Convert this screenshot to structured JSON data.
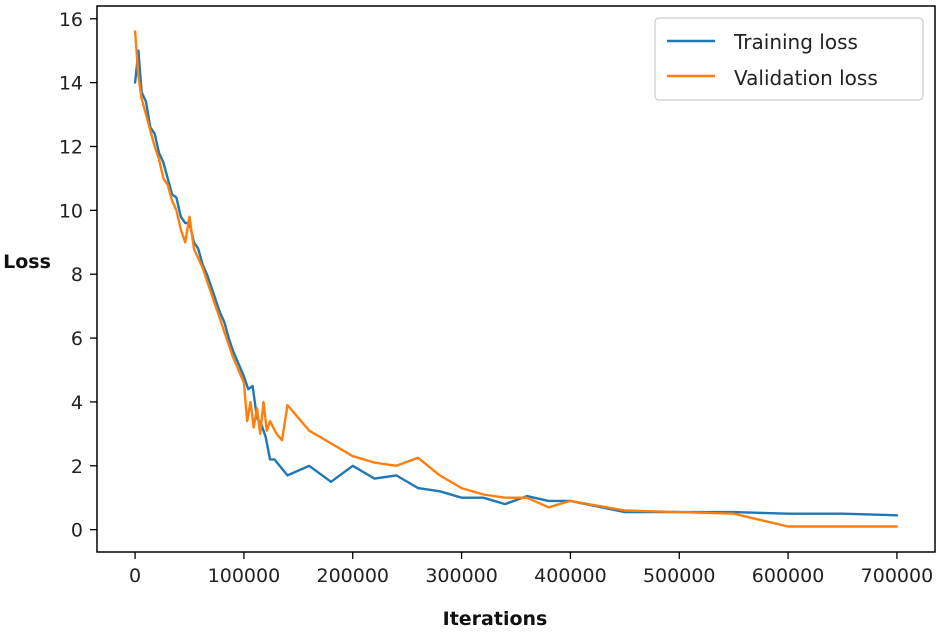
{
  "chart_data": {
    "type": "line",
    "xlabel": "Iterations",
    "ylabel": "Loss",
    "xlim": [
      -35000,
      735000
    ],
    "ylim": [
      -0.7,
      16.4
    ],
    "xticks": [
      0,
      100000,
      200000,
      300000,
      400000,
      500000,
      600000,
      700000
    ],
    "yticks": [
      0,
      2,
      4,
      6,
      8,
      10,
      12,
      14,
      16
    ],
    "grid": false,
    "legend": {
      "position": "top-right"
    },
    "series": [
      {
        "name": "Training loss",
        "color": "#1f77b4",
        "x": [
          0,
          3000,
          6000,
          10000,
          14000,
          18000,
          22000,
          26000,
          30000,
          34000,
          38000,
          42000,
          46000,
          50000,
          54000,
          58000,
          62000,
          66000,
          70000,
          74000,
          78000,
          82000,
          86000,
          90000,
          95000,
          100000,
          104000,
          108000,
          112000,
          116000,
          120000,
          124000,
          128000,
          140000,
          160000,
          180000,
          200000,
          220000,
          240000,
          260000,
          280000,
          300000,
          320000,
          340000,
          360000,
          380000,
          400000,
          450000,
          500000,
          550000,
          600000,
          650000,
          700000
        ],
        "y": [
          14.0,
          15.0,
          13.7,
          13.4,
          12.6,
          12.4,
          11.8,
          11.5,
          11.0,
          10.5,
          10.4,
          9.8,
          9.6,
          9.6,
          9.0,
          8.8,
          8.3,
          8.0,
          7.6,
          7.2,
          6.8,
          6.5,
          6.0,
          5.6,
          5.2,
          4.8,
          4.4,
          4.5,
          3.5,
          3.3,
          2.9,
          2.2,
          2.2,
          1.7,
          2.0,
          1.5,
          2.0,
          1.6,
          1.7,
          1.3,
          1.2,
          1.0,
          1.0,
          0.8,
          1.05,
          0.9,
          0.9,
          0.55,
          0.55,
          0.55,
          0.5,
          0.5,
          0.45
        ]
      },
      {
        "name": "Validation loss",
        "color": "#ff7f0e",
        "x": [
          0,
          3000,
          6000,
          10000,
          14000,
          18000,
          22000,
          26000,
          30000,
          34000,
          38000,
          42000,
          46000,
          50000,
          54000,
          58000,
          62000,
          66000,
          70000,
          74000,
          78000,
          82000,
          86000,
          90000,
          95000,
          100000,
          103000,
          106000,
          109000,
          112000,
          115000,
          118000,
          121000,
          124000,
          130000,
          135000,
          140000,
          160000,
          180000,
          200000,
          220000,
          240000,
          260000,
          280000,
          300000,
          320000,
          340000,
          360000,
          380000,
          400000,
          450000,
          500000,
          550000,
          600000,
          650000,
          700000
        ],
        "y": [
          15.6,
          14.2,
          13.5,
          13.0,
          12.5,
          12.0,
          11.6,
          11.0,
          10.8,
          10.3,
          10.0,
          9.4,
          9.0,
          9.8,
          8.8,
          8.5,
          8.2,
          7.8,
          7.4,
          7.0,
          6.6,
          6.2,
          5.8,
          5.4,
          5.0,
          4.6,
          3.4,
          4.0,
          3.2,
          3.8,
          3.0,
          4.0,
          3.1,
          3.4,
          3.0,
          2.8,
          3.9,
          3.1,
          2.7,
          2.3,
          2.1,
          2.0,
          2.25,
          1.7,
          1.3,
          1.1,
          1.0,
          1.0,
          0.7,
          0.9,
          0.6,
          0.55,
          0.5,
          0.1,
          0.1,
          0.1
        ]
      }
    ]
  }
}
